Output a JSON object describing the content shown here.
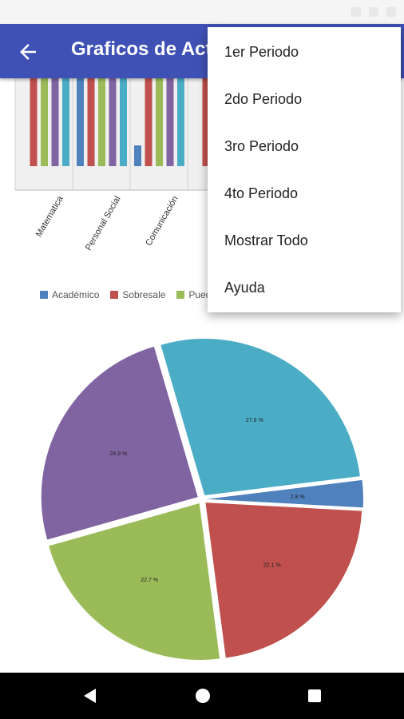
{
  "app": {
    "title": "Graficos de Actividad",
    "back_icon": "arrow-back-icon"
  },
  "colors": {
    "primary": "#3f51b5",
    "series": [
      "#4f81bd",
      "#c0504d",
      "#9bbb59",
      "#8064a2",
      "#4bacc6"
    ]
  },
  "menu": {
    "items": [
      {
        "label": "1er Periodo"
      },
      {
        "label": "2do Periodo"
      },
      {
        "label": "3ro Periodo"
      },
      {
        "label": "4to Periodo"
      },
      {
        "label": "Mostrar Todo"
      },
      {
        "label": "Ayuda"
      }
    ]
  },
  "legend": [
    {
      "label": "Académico",
      "color": "#4f81bd"
    },
    {
      "label": "Sobresale",
      "color": "#c0504d"
    },
    {
      "label": "Puede",
      "color": "#9bbb59"
    }
  ],
  "navbar": {
    "back_icon": "nav-back-icon",
    "home_icon": "nav-home-icon",
    "recents_icon": "nav-recents-icon"
  },
  "chart_data": [
    {
      "type": "bar",
      "categories": [
        "Matematica",
        "Personal Social",
        "Comunicación",
        ""
      ],
      "series": [
        {
          "name": "Académico",
          "values": [
            20,
            100,
            40,
            10
          ]
        },
        {
          "name": "Sobresale",
          "values": [
            100,
            100,
            100,
            100
          ]
        },
        {
          "name": "Puede",
          "values": [
            100,
            100,
            100,
            100
          ]
        },
        {
          "name": "",
          "values": [
            100,
            100,
            100,
            100
          ]
        },
        {
          "name": "",
          "values": [
            100,
            100,
            100,
            100
          ]
        }
      ],
      "ylim": [
        0,
        100
      ]
    },
    {
      "type": "pie",
      "slices": [
        {
          "label": "2.8 %",
          "value": 2.8,
          "color": "#4f81bd"
        },
        {
          "label": "22.1 %",
          "value": 22.1,
          "color": "#c0504d"
        },
        {
          "label": "22.7 %",
          "value": 22.7,
          "color": "#9bbb59"
        },
        {
          "label": "24.9 %",
          "value": 24.9,
          "color": "#8064a2"
        },
        {
          "label": "27.6 %",
          "value": 27.6,
          "color": "#4bacc6"
        }
      ]
    }
  ]
}
